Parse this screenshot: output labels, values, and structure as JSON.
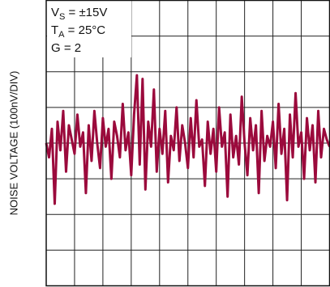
{
  "chart_data": {
    "type": "line",
    "y_label": "NOISE VOLTAGE (100nV/DIV)",
    "annotations": [
      {
        "text": "V",
        "sub": "S",
        "rest": " = ±15V"
      },
      {
        "text": "T",
        "sub": "A",
        "rest": " = 25°C"
      },
      {
        "text": "G = 2"
      }
    ],
    "grid": true,
    "xlim": [
      0,
      10
    ],
    "ylim": [
      0,
      8
    ],
    "series": [
      {
        "color": "#9b0a3c",
        "x": [
          0.0,
          0.1,
          0.2,
          0.3,
          0.4,
          0.5,
          0.6,
          0.7,
          0.8,
          0.9,
          1.0,
          1.1,
          1.2,
          1.3,
          1.4,
          1.5,
          1.6,
          1.7,
          1.8,
          1.9,
          2.0,
          2.1,
          2.2,
          2.3,
          2.4,
          2.5,
          2.6,
          2.7,
          2.8,
          2.9,
          3.0,
          3.1,
          3.2,
          3.3,
          3.4,
          3.5,
          3.6,
          3.7,
          3.8,
          3.9,
          4.0,
          4.1,
          4.2,
          4.3,
          4.4,
          4.5,
          4.6,
          4.7,
          4.8,
          4.9,
          5.0,
          5.1,
          5.2,
          5.3,
          5.4,
          5.5,
          5.6,
          5.7,
          5.8,
          5.9,
          6.0,
          6.1,
          6.2,
          6.3,
          6.4,
          6.5,
          6.6,
          6.7,
          6.8,
          6.9,
          7.0,
          7.1,
          7.2,
          7.3,
          7.4,
          7.5,
          7.6,
          7.7,
          7.8,
          7.9,
          8.0,
          8.1,
          8.2,
          8.3,
          8.4,
          8.5,
          8.6,
          8.7,
          8.8,
          8.9,
          9.0,
          9.1,
          9.2,
          9.3,
          9.4,
          9.5,
          9.6,
          9.7,
          9.8,
          9.9,
          10.0
        ],
        "values": [
          4.0,
          3.6,
          4.4,
          2.3,
          4.6,
          3.8,
          4.9,
          3.2,
          4.5,
          4.1,
          3.7,
          4.8,
          3.9,
          4.3,
          2.6,
          4.5,
          3.5,
          4.9,
          4.0,
          3.3,
          4.7,
          3.9,
          4.4,
          3.0,
          4.6,
          4.2,
          3.6,
          5.1,
          3.8,
          4.3,
          3.1,
          4.8,
          5.9,
          3.4,
          5.8,
          2.7,
          4.6,
          3.9,
          5.5,
          3.2,
          4.4,
          3.7,
          4.9,
          2.9,
          4.2,
          3.8,
          5.0,
          3.5,
          4.5,
          4.0,
          3.3,
          4.7,
          3.6,
          5.2,
          3.9,
          4.1,
          2.8,
          4.6,
          3.7,
          4.4,
          3.2,
          5.0,
          3.9,
          4.3,
          2.5,
          4.8,
          3.6,
          4.2,
          3.4,
          5.3,
          4.0,
          3.1,
          4.7,
          3.8,
          4.5,
          2.6,
          4.9,
          3.5,
          4.2,
          3.9,
          4.6,
          3.3,
          5.1,
          3.7,
          4.4,
          2.4,
          4.8,
          3.6,
          5.4,
          3.9,
          4.3,
          3.0,
          4.7,
          3.8,
          4.5,
          2.9,
          4.9,
          3.6,
          4.4,
          4.1,
          3.9
        ]
      }
    ]
  }
}
